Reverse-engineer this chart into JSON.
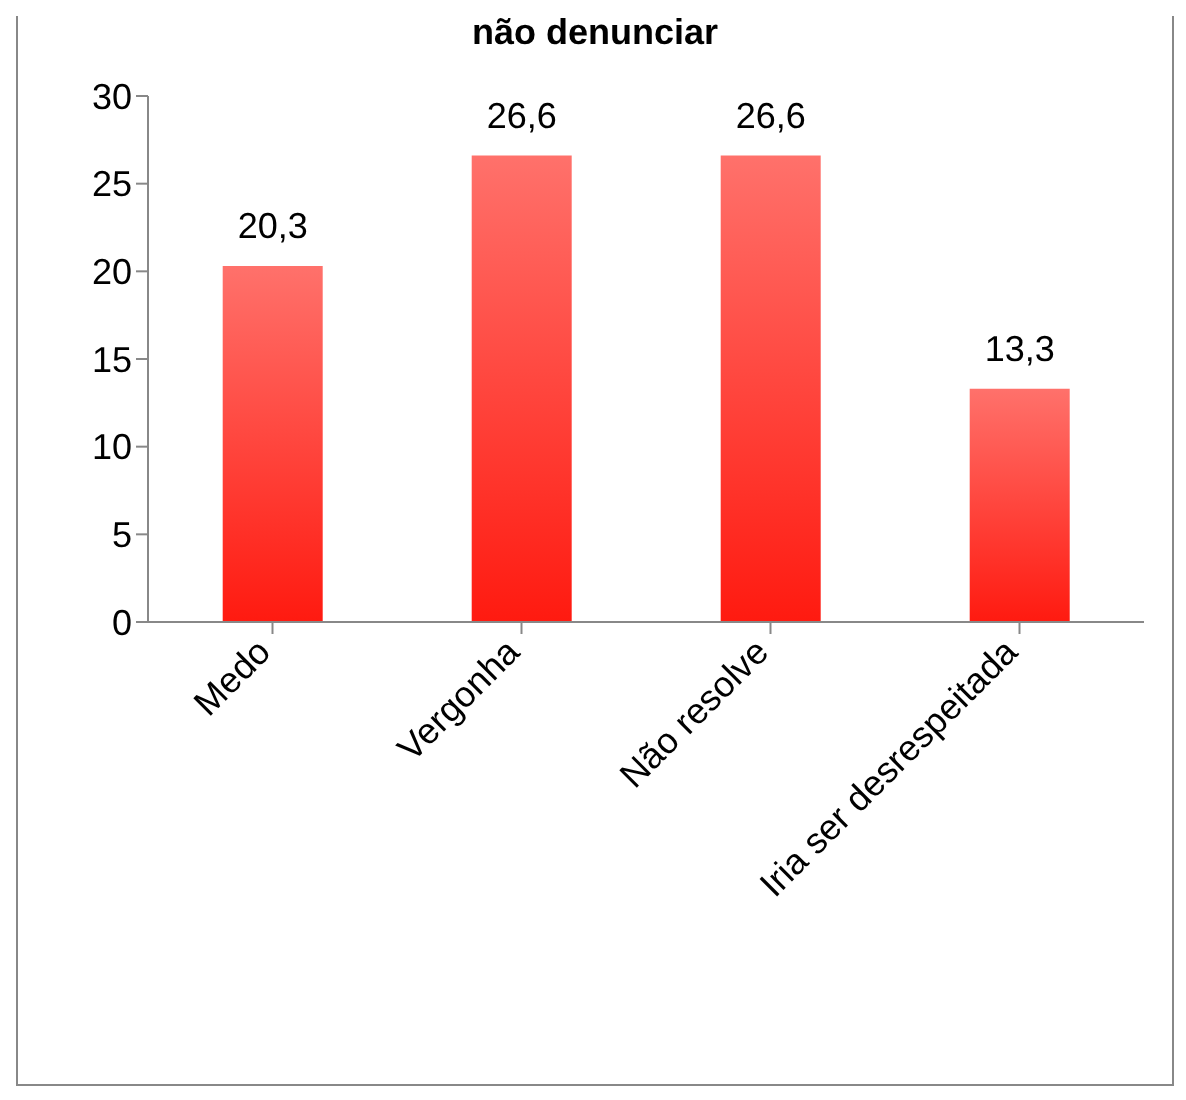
{
  "chart_data": {
    "type": "bar",
    "title": "não denunciar",
    "categories": [
      "Medo",
      "Vergonha",
      "Não resolve",
      "Iria ser desrespeitada"
    ],
    "values": [
      20.3,
      26.6,
      26.6,
      13.3
    ],
    "value_labels": [
      "20,3",
      "26,6",
      "26,6",
      "13,3"
    ],
    "color": "#ff1a10",
    "ylim": [
      0,
      30
    ],
    "yticks": [
      0,
      5,
      10,
      15,
      20,
      25,
      30
    ],
    "grid": false
  }
}
